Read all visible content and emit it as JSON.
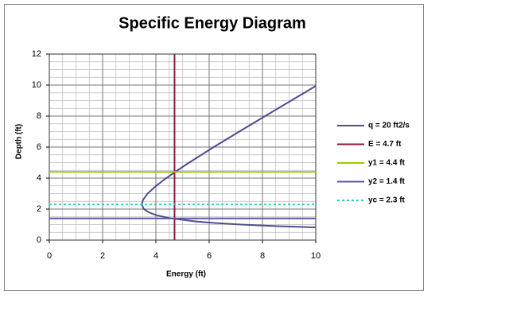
{
  "chart_data": {
    "type": "line",
    "title": "Specific Energy Diagram",
    "x_label": "Energy  (ft)",
    "y_label": "Depth  (ft)",
    "xlim": [
      0,
      10
    ],
    "ylim": [
      0,
      12
    ],
    "xticks": [
      0,
      2,
      4,
      6,
      8,
      10
    ],
    "yticks": [
      0,
      2,
      4,
      6,
      8,
      10,
      12
    ],
    "minor_grid_step": 0.5,
    "grid": true,
    "legend": "right",
    "series": [
      {
        "name": "q = 20 ft2/s",
        "color": "#4d4d8f",
        "x": [
          10.0,
          9.85,
          8.57,
          7.21,
          6.23,
          5.51,
          4.57,
          4.03,
          3.72,
          3.55,
          3.47,
          3.52,
          3.69,
          4.01,
          4.39,
          4.81,
          5.25,
          6.17,
          7.13,
          8.1,
          9.08,
          10.0
        ],
        "values": [
          0.82,
          0.83,
          0.9,
          1.0,
          1.1,
          1.2,
          1.4,
          1.6,
          1.8,
          2.0,
          2.3,
          2.6,
          3.0,
          3.5,
          4.0,
          4.5,
          5.0,
          6.0,
          7.0,
          8.0,
          9.0,
          9.94
        ]
      },
      {
        "name": "E = 4.7 ft",
        "color": "#8b1a3c",
        "x": [
          4.7,
          4.7
        ],
        "values": [
          0,
          12
        ]
      },
      {
        "name": "y1 = 4.4 ft",
        "color": "#99cc00",
        "x": [
          0,
          10
        ],
        "values": [
          4.4,
          4.4
        ]
      },
      {
        "name": "y2 = 1.4 ft",
        "color": "#5a5aa6",
        "x": [
          0,
          10
        ],
        "values": [
          1.4,
          1.4
        ]
      },
      {
        "name": "yc = 2.3 ft",
        "color": "#33cccc",
        "dash": true,
        "x": [
          0,
          10
        ],
        "values": [
          2.3,
          2.3
        ]
      }
    ]
  }
}
